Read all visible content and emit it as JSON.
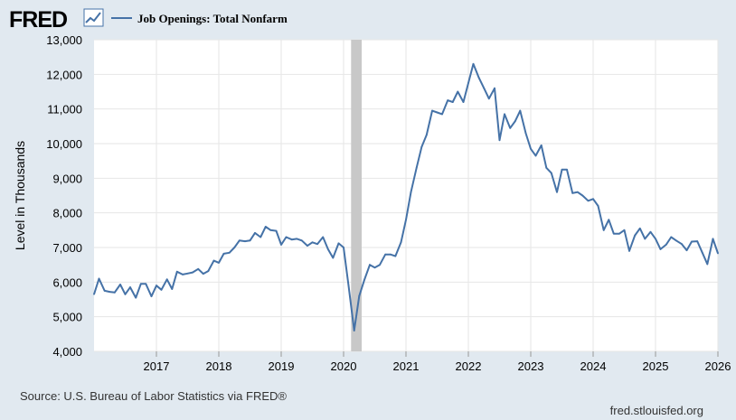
{
  "header": {
    "logo_text": "FRED",
    "logo_icon": "line-chart-icon",
    "legend_label": "Job Openings: Total Nonfarm",
    "series_color": "#4572a7"
  },
  "footer": {
    "source": "Source: U.S. Bureau of Labor Statistics via FRED®",
    "credit": "fred.stlouisfed.org"
  },
  "chart_data": {
    "type": "line",
    "title": "Job Openings: Total Nonfarm",
    "xlabel": "",
    "ylabel": "Level in Thousands",
    "xlim": [
      2016.0,
      2026.0
    ],
    "ylim": [
      4000,
      13000
    ],
    "grid": true,
    "legend": "top-left",
    "y_ticks": [
      4000,
      5000,
      6000,
      7000,
      8000,
      9000,
      10000,
      11000,
      12000,
      13000
    ],
    "y_tick_labels": [
      "4,000",
      "5,000",
      "6,000",
      "7,000",
      "8,000",
      "9,000",
      "10,000",
      "11,000",
      "12,000",
      "13,000"
    ],
    "x_ticks": [
      2017,
      2018,
      2019,
      2020,
      2021,
      2022,
      2023,
      2024,
      2025,
      2026
    ],
    "x_tick_labels": [
      "2017",
      "2018",
      "2019",
      "2020",
      "2021",
      "2022",
      "2023",
      "2024",
      "2025",
      "2026"
    ],
    "recession": {
      "start": 2020.12,
      "end": 2020.29
    },
    "series": [
      {
        "name": "Job Openings: Total Nonfarm",
        "color": "#4572a7",
        "x": [
          2016.0,
          2016.08,
          2016.17,
          2016.25,
          2016.33,
          2016.42,
          2016.5,
          2016.58,
          2016.67,
          2016.75,
          2016.83,
          2016.92,
          2017.0,
          2017.08,
          2017.17,
          2017.25,
          2017.33,
          2017.42,
          2017.5,
          2017.58,
          2017.67,
          2017.75,
          2017.83,
          2017.92,
          2018.0,
          2018.08,
          2018.17,
          2018.25,
          2018.33,
          2018.42,
          2018.5,
          2018.58,
          2018.67,
          2018.75,
          2018.83,
          2018.92,
          2019.0,
          2019.08,
          2019.17,
          2019.25,
          2019.33,
          2019.42,
          2019.5,
          2019.58,
          2019.67,
          2019.75,
          2019.83,
          2019.92,
          2020.0,
          2020.08,
          2020.17,
          2020.25,
          2020.33,
          2020.42,
          2020.5,
          2020.58,
          2020.67,
          2020.75,
          2020.83,
          2020.92,
          2021.0,
          2021.08,
          2021.17,
          2021.25,
          2021.33,
          2021.42,
          2021.5,
          2021.58,
          2021.67,
          2021.75,
          2021.83,
          2021.92,
          2022.0,
          2022.08,
          2022.17,
          2022.25,
          2022.33,
          2022.42,
          2022.5,
          2022.58,
          2022.67,
          2022.75,
          2022.83,
          2022.92,
          2023.0,
          2023.08,
          2023.17,
          2023.25,
          2023.33,
          2023.42,
          2023.5,
          2023.58,
          2023.67,
          2023.75,
          2023.83,
          2023.92,
          2024.0,
          2024.08,
          2024.17,
          2024.25,
          2024.33,
          2024.42,
          2024.5,
          2024.58,
          2024.67,
          2024.75,
          2024.83,
          2024.92,
          2025.0,
          2025.08,
          2025.17,
          2025.25,
          2025.33,
          2025.42,
          2025.5,
          2025.58,
          2025.67,
          2025.75,
          2025.83,
          2025.92,
          2026.0
        ],
        "values": [
          5650,
          6100,
          5750,
          5720,
          5700,
          5930,
          5650,
          5850,
          5550,
          5950,
          5950,
          5590,
          5900,
          5780,
          6080,
          5800,
          6300,
          6220,
          6250,
          6280,
          6380,
          6240,
          6320,
          6620,
          6560,
          6820,
          6850,
          7000,
          7200,
          7180,
          7200,
          7420,
          7300,
          7600,
          7500,
          7480,
          7080,
          7300,
          7230,
          7250,
          7200,
          7050,
          7150,
          7100,
          7300,
          6950,
          6700,
          7120,
          7000,
          5900,
          4600,
          5600,
          6050,
          6500,
          6420,
          6500,
          6800,
          6800,
          6750,
          7150,
          7800,
          8600,
          9300,
          9900,
          10250,
          10950,
          10900,
          10850,
          11250,
          11200,
          11500,
          11200,
          11750,
          12300,
          11900,
          11600,
          11300,
          11600,
          10100,
          10850,
          10450,
          10650,
          10950,
          10300,
          9850,
          9650,
          9950,
          9300,
          9150,
          8600,
          9250,
          9250,
          8570,
          8600,
          8500,
          8350,
          8400,
          8200,
          7500,
          7800,
          7400,
          7400,
          7500,
          6900,
          7350,
          7550,
          7250,
          7450,
          7250,
          6950,
          7080,
          7300,
          7200,
          7100,
          6920,
          7170,
          7180,
          6850,
          6520,
          7250,
          6830
        ]
      }
    ]
  }
}
